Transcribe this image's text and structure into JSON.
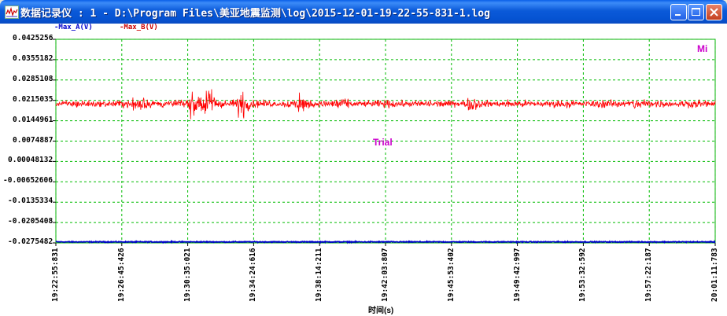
{
  "window": {
    "title": "数据记录仪 : 1 - D:\\Program Files\\美亚地震监测\\log\\2015-12-01-19-22-55-831-1.log",
    "icon": "chart-app-icon",
    "controls": [
      "minimize",
      "maximize",
      "close"
    ]
  },
  "legend": [
    {
      "label": "-Max_A(V)",
      "color": "#0000CC"
    },
    {
      "label": "-Max_B(V)",
      "color": "#CC0000"
    }
  ],
  "watermark": "Trial",
  "corner_label": "Mi",
  "chart_data": {
    "type": "line",
    "xlabel": "时间(s)",
    "ylabel": "",
    "ylim": [
      -0.0275482,
      0.0425256
    ],
    "y_ticks": [
      "0.0425256",
      "0.0355182",
      "0.0285108",
      "0.0215035",
      "0.0144961",
      "0.0074887",
      "0.00048132",
      "-0.00652606",
      "-0.0135334",
      "-0.0205408",
      "-0.0275482"
    ],
    "x_ticks": [
      "19:22:55:831",
      "19:26:45:426",
      "19:30:35:021",
      "19:34:24:616",
      "19:38:14:211",
      "19:42:03:807",
      "19:45:53:402",
      "19:49:42:997",
      "19:53:32:592",
      "19:57:22:187",
      "20:01:11:783"
    ],
    "grid": true,
    "series": [
      {
        "name": "-Max_A(V)",
        "color": "#0000CC",
        "baseline": -0.0272,
        "noise": 0.00025
      },
      {
        "name": "-Max_B(V)",
        "color": "#FF0000",
        "baseline": 0.0203,
        "noise": 0.0016,
        "bursts": [
          {
            "at": 0.13,
            "amp": 0.0095
          },
          {
            "at": 0.205,
            "amp": 0.0075
          },
          {
            "at": 0.23,
            "amp": 0.014
          },
          {
            "at": 0.28,
            "amp": 0.012
          },
          {
            "at": 0.37,
            "amp": 0.006
          },
          {
            "at": 0.425,
            "amp": 0.005
          },
          {
            "at": 0.63,
            "amp": 0.004
          },
          {
            "at": 0.88,
            "amp": 0.0035
          }
        ]
      }
    ]
  }
}
